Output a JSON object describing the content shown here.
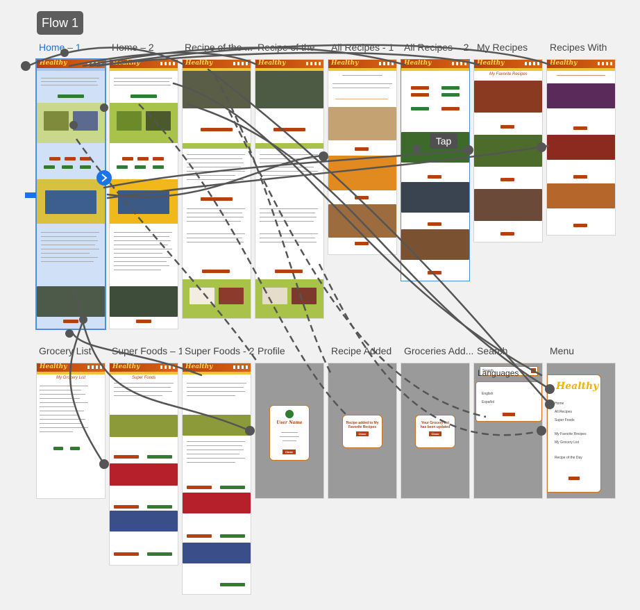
{
  "flow": {
    "label": "Flow 1"
  },
  "artboards": {
    "home1": "Home – 1",
    "home2": "Home – 2",
    "recipe1": "Recipe of the ...",
    "recipe2": "Recipe of the ...",
    "all1": "All Recipes - 1",
    "all2": "All Recipes – 2",
    "my": "My Recipes",
    "with": "Recipes With",
    "grocery": "Grocery List",
    "super1": "Super Foods – 1",
    "super2": "Super Foods - 2",
    "profile": "Profile",
    "added": "Recipe Added",
    "gadded": "Groceries Add...",
    "search": "Search",
    "menu": "Menu"
  },
  "tooltip": {
    "tap": "Tap"
  },
  "frames": {
    "logo": "Healthy",
    "my_recipes_title": "My Favorite Recipes",
    "grocery_title": "My Grocery List",
    "super_title": "Super Foods",
    "profile_name": "User Name",
    "recipe_added": "Recipe added to My Favorite Recipes",
    "grocery_added": "Your Grocery list has been updated",
    "close": "Close",
    "languages": "Languages",
    "english": "English",
    "espanol": "Español",
    "search_placeholder": "Search",
    "menu_items": [
      "Home",
      "All Recipes",
      "Super Foods",
      "My Favorite Recipes",
      "My Grocery List",
      "Recipe of the Day"
    ]
  },
  "colors": {
    "accent": "#b6400f",
    "header": "#d86414",
    "selection": "#1a73e8",
    "green": "#2f7d32",
    "wire": "#555555"
  }
}
